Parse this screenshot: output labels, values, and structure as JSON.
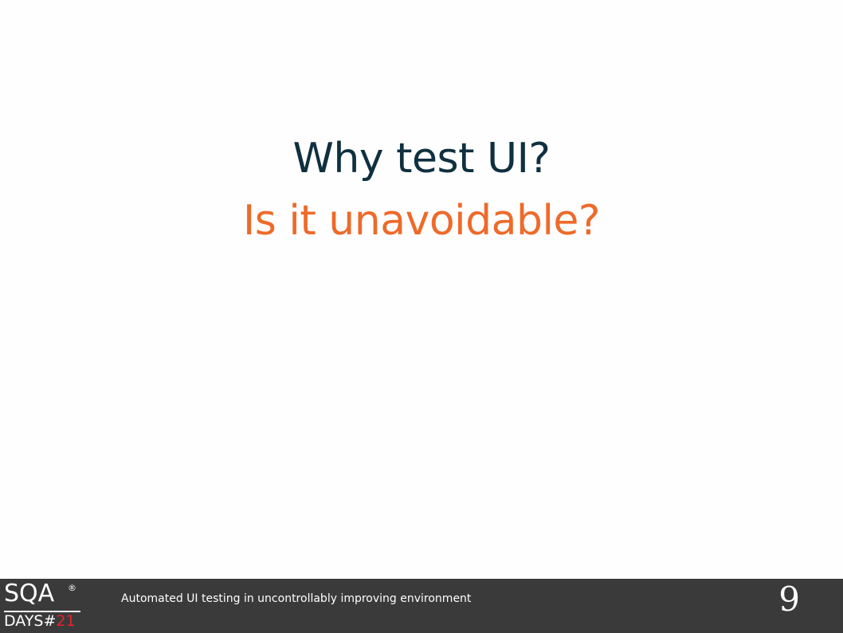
{
  "slide": {
    "title": "Why test UI?",
    "subtitle": "Is it unavoidable?"
  },
  "footer": {
    "logo": {
      "top_text": "SQA",
      "registered_mark": "®",
      "bottom_text": "DAYS#",
      "bottom_number": "21"
    },
    "caption": "Automated UI testing in uncontrollably improving environment",
    "page_number": "9"
  },
  "colors": {
    "title": "#0f3040",
    "subtitle": "#ee6a2a",
    "footer_background": "#3a3a3a",
    "logo_accent": "#e8232a"
  }
}
